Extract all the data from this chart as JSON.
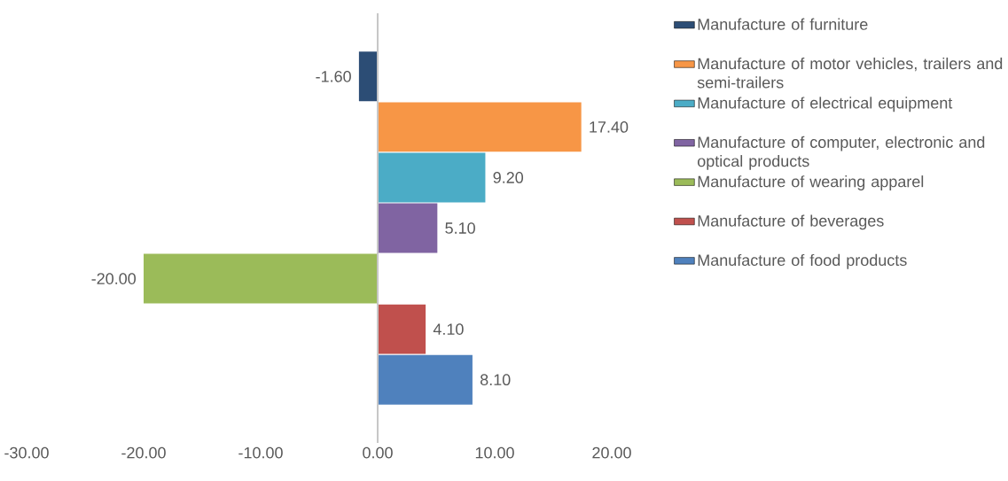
{
  "chart_data": {
    "type": "bar",
    "orientation": "horizontal",
    "categories": [
      null
    ],
    "series": [
      {
        "name": "Manufacture of furniture",
        "color": "#2c4d75",
        "values": [
          -1.6
        ],
        "value_labels": [
          "-1.60"
        ]
      },
      {
        "name": "Manufacture of motor vehicles, trailers and semi-trailers",
        "color": "#f79646",
        "values": [
          17.4
        ],
        "value_labels": [
          "17.40"
        ]
      },
      {
        "name": "Manufacture of electrical equipment",
        "color": "#4bacc6",
        "values": [
          9.2
        ],
        "value_labels": [
          "9.20"
        ]
      },
      {
        "name": "Manufacture of computer, electronic and optical products",
        "color": "#8064a2",
        "values": [
          5.1
        ],
        "value_labels": [
          "5.10"
        ]
      },
      {
        "name": "Manufacture of wearing apparel",
        "color": "#9bbb59",
        "values": [
          -20.0
        ],
        "value_labels": [
          "-20.00"
        ]
      },
      {
        "name": "Manufacture of beverages",
        "color": "#c0504d",
        "values": [
          4.1
        ],
        "value_labels": [
          "4.10"
        ]
      },
      {
        "name": "Manufacture of food products",
        "color": "#4f81bd",
        "values": [
          8.1
        ],
        "value_labels": [
          "8.10"
        ]
      }
    ],
    "xlim": [
      -30,
      20
    ],
    "xticks": [
      {
        "value": -30,
        "label": "-30.00"
      },
      {
        "value": -20,
        "label": "-20.00"
      },
      {
        "value": -10,
        "label": "-10.00"
      },
      {
        "value": 0,
        "label": "0.00"
      },
      {
        "value": 10,
        "label": "10.00"
      },
      {
        "value": 20,
        "label": "20.00"
      }
    ],
    "legend": "right"
  }
}
